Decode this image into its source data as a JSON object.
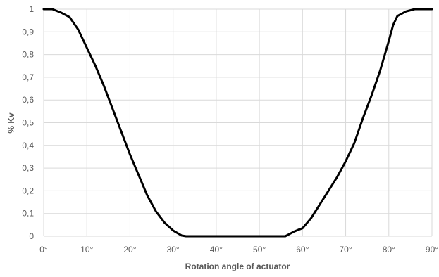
{
  "chart_data": {
    "type": "line",
    "title": "",
    "xlabel": "Rotation angle of actuator",
    "ylabel": "% Kv",
    "xlim": [
      0,
      90
    ],
    "ylim": [
      0,
      1
    ],
    "grid": true,
    "x_ticks": [
      {
        "value": 0,
        "label": "0°"
      },
      {
        "value": 10,
        "label": "10°"
      },
      {
        "value": 20,
        "label": "20°"
      },
      {
        "value": 30,
        "label": "30°"
      },
      {
        "value": 40,
        "label": "40°"
      },
      {
        "value": 50,
        "label": "50°"
      },
      {
        "value": 60,
        "label": "60°"
      },
      {
        "value": 70,
        "label": "70°"
      },
      {
        "value": 80,
        "label": "80°"
      },
      {
        "value": 90,
        "label": "90°"
      }
    ],
    "y_ticks": [
      {
        "value": 0,
        "label": "0"
      },
      {
        "value": 0.1,
        "label": "0,1"
      },
      {
        "value": 0.2,
        "label": "0,2"
      },
      {
        "value": 0.3,
        "label": "0,3"
      },
      {
        "value": 0.4,
        "label": "0,4"
      },
      {
        "value": 0.5,
        "label": "0,5"
      },
      {
        "value": 0.6,
        "label": "0,6"
      },
      {
        "value": 0.7,
        "label": "0,7"
      },
      {
        "value": 0.8,
        "label": "0,8"
      },
      {
        "value": 0.9,
        "label": "0,9"
      },
      {
        "value": 1,
        "label": "1"
      }
    ],
    "series": [
      {
        "line_color": "#000000",
        "x": [
          0,
          2,
          4,
          6,
          8,
          10,
          12,
          14,
          16,
          18,
          20,
          22,
          24,
          26,
          28,
          30,
          32,
          33,
          40,
          50,
          56,
          57,
          58,
          59,
          60,
          62,
          64,
          66,
          68,
          70,
          72,
          74,
          76,
          78,
          80,
          81,
          82,
          84,
          85,
          86,
          88,
          90
        ],
        "y": [
          1.0,
          1.0,
          0.985,
          0.965,
          0.91,
          0.83,
          0.75,
          0.66,
          0.56,
          0.46,
          0.36,
          0.27,
          0.18,
          0.11,
          0.06,
          0.025,
          0.003,
          0,
          0,
          0,
          0,
          0.01,
          0.02,
          0.028,
          0.035,
          0.08,
          0.14,
          0.2,
          0.26,
          0.33,
          0.41,
          0.52,
          0.62,
          0.73,
          0.86,
          0.93,
          0.97,
          0.99,
          0.995,
          1.0,
          1.0,
          1.0
        ]
      }
    ]
  }
}
